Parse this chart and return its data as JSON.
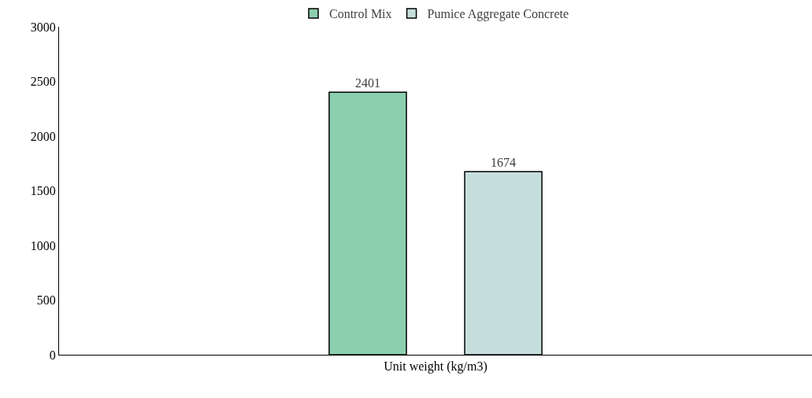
{
  "chart_data": {
    "type": "bar",
    "categories": [
      "Unit weight (kg/m3)"
    ],
    "series": [
      {
        "name": "Control Mix",
        "color": "#8ccfae",
        "values": [
          2401
        ]
      },
      {
        "name": "Pumice Aggregate Concrete",
        "color": "#c5dedc",
        "values": [
          1674
        ]
      }
    ],
    "ylim": [
      0,
      3000
    ],
    "yticks": [
      0,
      500,
      1000,
      1500,
      2000,
      2500,
      3000
    ],
    "legend": "top",
    "data_labels": true
  }
}
